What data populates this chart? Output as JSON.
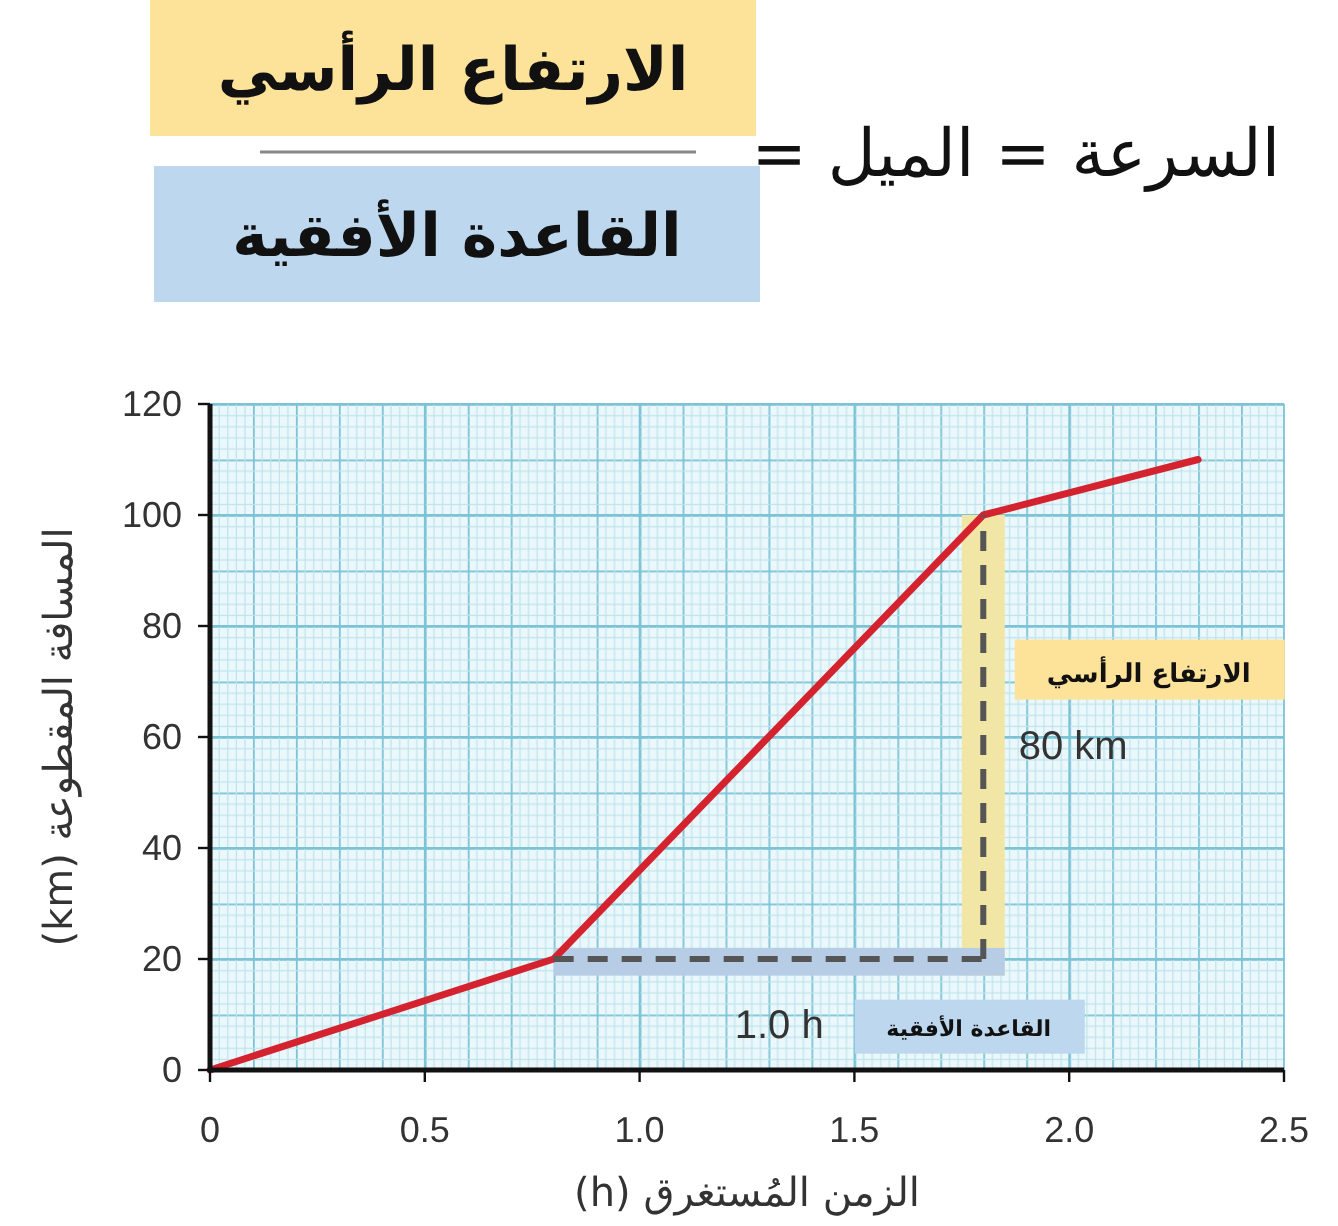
{
  "chart_data": {
    "type": "line",
    "title": "السرعة = الميل =",
    "xlabel": "الزمن المُستغرق (h)",
    "ylabel": "المسافة المقطوعة (km)",
    "xlim": [
      0,
      2.5
    ],
    "ylim": [
      0,
      120
    ],
    "xticks": [
      0,
      0.5,
      {
        "value": 1,
        "label": "1.0"
      },
      1.5,
      {
        "value": 2,
        "label": "2.0"
      },
      2.5
    ],
    "yticks": [
      0,
      20,
      40,
      60,
      80,
      100,
      120
    ],
    "grid": true,
    "line_style": "solid",
    "series": [
      {
        "color": "#d4232e",
        "x": [
          0,
          0.8,
          1.8,
          2.3
        ],
        "values": [
          0,
          20,
          100,
          110
        ]
      },
      {
        "color": "#555555",
        "line_style": "dashed",
        "x": [
          0.8,
          1.8
        ],
        "values": [
          20,
          20
        ]
      },
      {
        "color": "#555555",
        "line_style": "dashed",
        "x": [
          1.8,
          1.8
        ],
        "values": [
          20,
          100
        ]
      }
    ],
    "bands": [
      {
        "axis": "x",
        "from": 1.75,
        "to": 1.85,
        "label": "الارتفاع الرأسي",
        "color": "#f2e6a6"
      },
      {
        "axis": "y",
        "from": 17,
        "to": 22,
        "label": "القاعدة الأفقية",
        "color": "#b7cde6"
      }
    ],
    "annotations": [
      "الارتفاع الرأسي",
      "القاعدة الأفقية",
      "80 km",
      "1.0 h"
    ]
  }
}
